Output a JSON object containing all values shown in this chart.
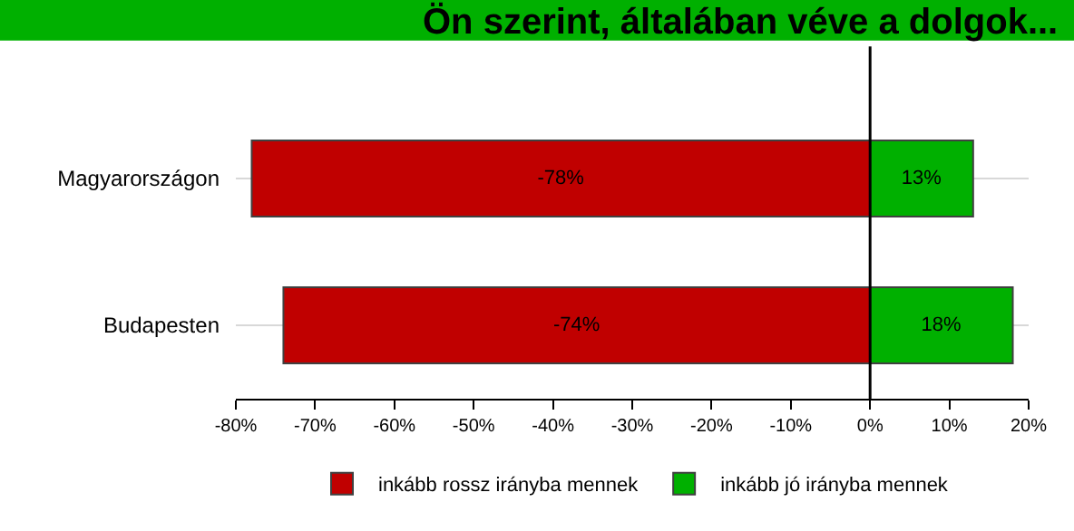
{
  "chart_data": {
    "type": "bar",
    "orientation": "horizontal",
    "stacked": true,
    "title": "Ön szerint, általában véve a dolgok...",
    "categories": [
      "Magyarországon",
      "Budapesten"
    ],
    "series": [
      {
        "name": "inkább rossz irányba mennek",
        "color": "#c00000",
        "values": [
          -78,
          -74
        ],
        "value_labels": [
          "-78%",
          "-74%"
        ]
      },
      {
        "name": "inkább jó irányba mennek",
        "color": "#00b000",
        "values": [
          13,
          18
        ],
        "value_labels": [
          "13%",
          "18%"
        ]
      }
    ],
    "xlim": [
      -80,
      20
    ],
    "xticks": [
      {
        "value": -80,
        "label": "-80%"
      },
      {
        "value": -70,
        "label": "-70%"
      },
      {
        "value": -60,
        "label": "-60%"
      },
      {
        "value": -50,
        "label": "-50%"
      },
      {
        "value": -40,
        "label": "-40%"
      },
      {
        "value": -30,
        "label": "-30%"
      },
      {
        "value": -20,
        "label": "-20%"
      },
      {
        "value": -10,
        "label": "-10%"
      },
      {
        "value": 0,
        "label": "0%"
      },
      {
        "value": 10,
        "label": "10%"
      },
      {
        "value": 20,
        "label": "20%"
      }
    ],
    "ref_lines": [
      {
        "axis": "x",
        "value": 0,
        "color": "#000000"
      }
    ],
    "grid": "y",
    "legend": "bottom"
  }
}
